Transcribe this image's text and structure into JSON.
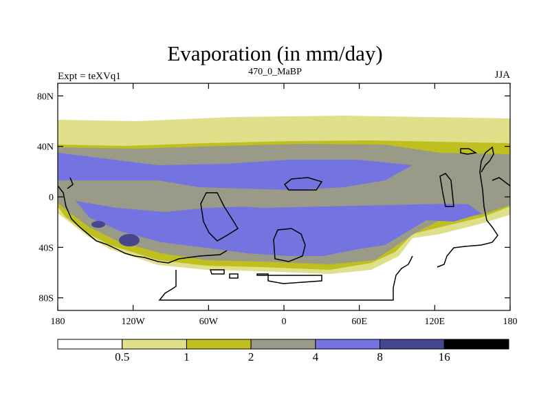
{
  "title": "Evaporation (in mm/day)",
  "experiment_label": "Expt = teXVq1",
  "subtitle": "470_0_MaBP",
  "season": "JJA",
  "axes": {
    "latitude_ticks": [
      "80N",
      "40N",
      "0",
      "40S",
      "80S"
    ],
    "longitude_ticks": [
      "180",
      "120W",
      "60W",
      "0",
      "60E",
      "120E",
      "180"
    ]
  },
  "colorbar": {
    "labels": [
      "0.5",
      "1",
      "2",
      "4",
      "8",
      "16"
    ],
    "colors": [
      "#ffffff",
      "#e0e08a",
      "#bfbf1f",
      "#9a9a88",
      "#7474e0",
      "#47478e",
      "#000000"
    ]
  }
}
